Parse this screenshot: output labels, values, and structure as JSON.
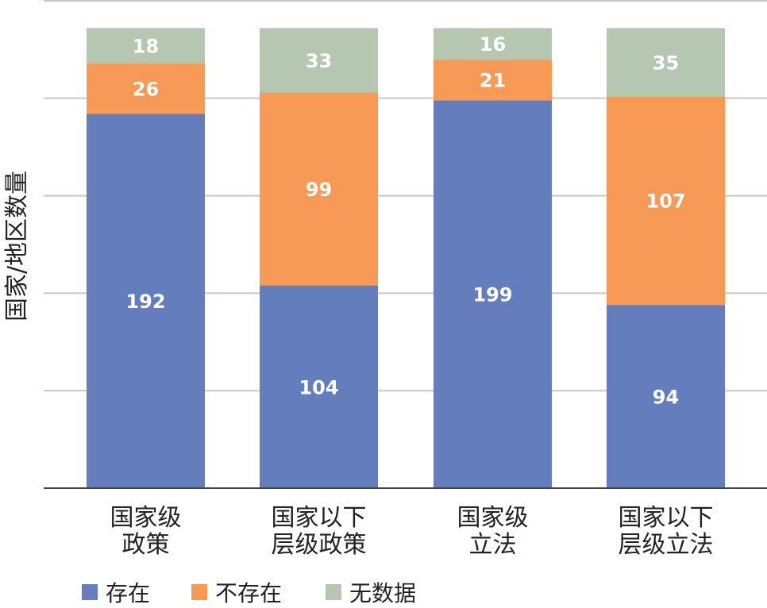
{
  "chart_data": {
    "type": "bar",
    "stacked": true,
    "title": "",
    "xlabel": "",
    "ylabel": "国家/地区数量",
    "ylim": [
      0,
      250
    ],
    "grid": true,
    "gridlines": [
      50,
      100,
      150,
      200,
      250
    ],
    "categories": [
      [
        "国家级",
        "政策"
      ],
      [
        "国家以下",
        "层级政策"
      ],
      [
        "国家级",
        "立法"
      ],
      [
        "国家以下",
        "层级立法"
      ]
    ],
    "series": [
      {
        "name": "存在",
        "color": "#647dbd",
        "values": [
          192,
          104,
          199,
          94
        ]
      },
      {
        "name": "不存在",
        "color": "#f79a55",
        "values": [
          26,
          99,
          21,
          107
        ]
      },
      {
        "name": "无数据",
        "color": "#b5c7b0",
        "values": [
          18,
          33,
          16,
          35
        ]
      }
    ],
    "legend_position": "bottom"
  }
}
